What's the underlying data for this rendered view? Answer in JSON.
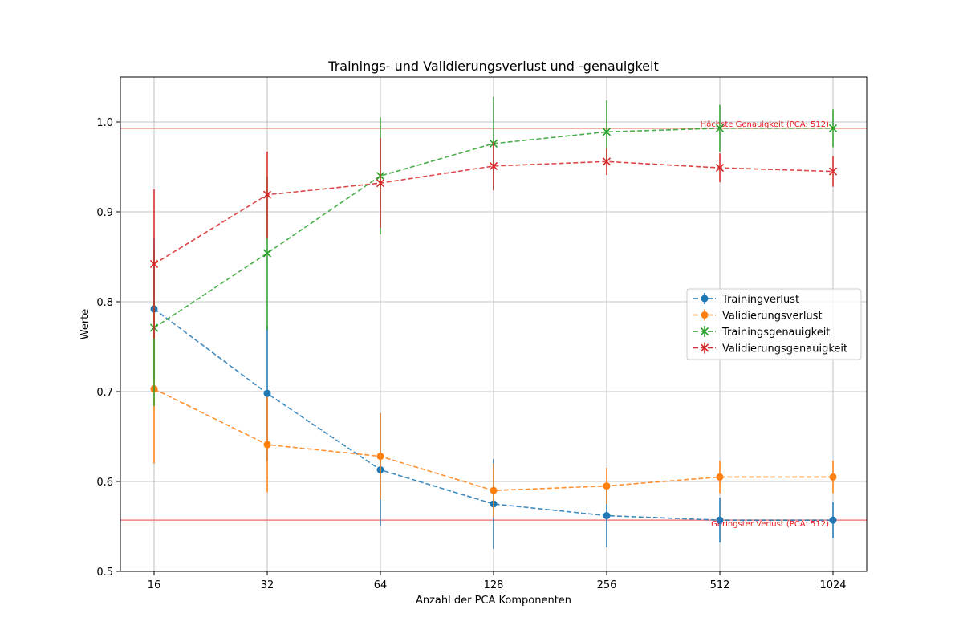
{
  "chart_data": {
    "type": "line",
    "title": "Trainings- und Validierungsverlust und -genauigkeit",
    "xlabel": "Anzahl der PCA Komponenten",
    "ylabel": "Werte",
    "categories": [
      "16",
      "32",
      "64",
      "128",
      "256",
      "512",
      "1024"
    ],
    "ylim": [
      0.5,
      1.05
    ],
    "yticks": [
      "0.5",
      "0.6",
      "0.7",
      "0.8",
      "0.9",
      "1.0"
    ],
    "grid": true,
    "legend_position": "center-right",
    "series": [
      {
        "name": "Trainingverlust",
        "color": "#1f77b4",
        "marker": "circle",
        "values": [
          0.792,
          0.698,
          0.613,
          0.575,
          0.562,
          0.557,
          0.557
        ],
        "error": [
          0.08,
          0.075,
          0.063,
          0.05,
          0.035,
          0.025,
          0.02
        ]
      },
      {
        "name": "Validierungsverlust",
        "color": "#ff7f0e",
        "marker": "circle",
        "values": [
          0.703,
          0.641,
          0.628,
          0.59,
          0.595,
          0.605,
          0.605
        ],
        "error": [
          0.083,
          0.053,
          0.048,
          0.03,
          0.02,
          0.018,
          0.018
        ]
      },
      {
        "name": "Trainingsgenauigkeit",
        "color": "#2ca02c",
        "marker": "x",
        "values": [
          0.771,
          0.854,
          0.94,
          0.976,
          0.989,
          0.993,
          0.993
        ],
        "error": [
          0.087,
          0.085,
          0.065,
          0.052,
          0.035,
          0.026,
          0.021
        ]
      },
      {
        "name": "Validierungsgenauigkeit",
        "color": "#d62728",
        "marker": "x",
        "values": [
          0.842,
          0.919,
          0.932,
          0.951,
          0.956,
          0.949,
          0.945
        ],
        "error": [
          0.083,
          0.048,
          0.05,
          0.027,
          0.015,
          0.016,
          0.017
        ]
      }
    ],
    "reference_lines": [
      {
        "y": 0.993,
        "color": "#f08080",
        "label": "Höchste Genauigkeit (PCA: 512)"
      },
      {
        "y": 0.557,
        "color": "#f08080",
        "label": "Geringster Verlust (PCA: 512)"
      }
    ]
  }
}
